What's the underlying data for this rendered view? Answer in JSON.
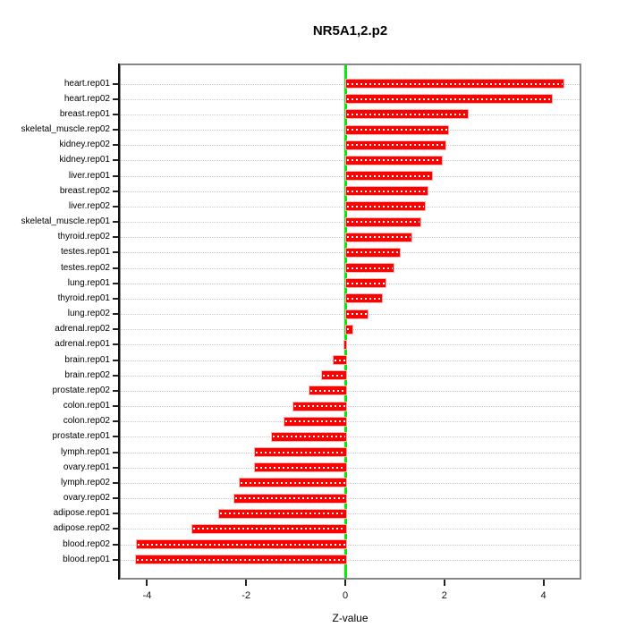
{
  "chart_data": {
    "type": "bar",
    "orientation": "horizontal",
    "title": "NR5A1,2.p2",
    "xlabel": "Z-value",
    "ylabel": "",
    "categories": [
      "heart.rep01",
      "heart.rep02",
      "breast.rep01",
      "skeletal_muscle.rep02",
      "kidney.rep02",
      "kidney.rep01",
      "liver.rep01",
      "breast.rep02",
      "liver.rep02",
      "skeletal_muscle.rep01",
      "thyroid.rep02",
      "testes.rep01",
      "testes.rep02",
      "lung.rep01",
      "thyroid.rep01",
      "lung.rep02",
      "adrenal.rep02",
      "adrenal.rep01",
      "brain.rep01",
      "brain.rep02",
      "prostate.rep02",
      "colon.rep01",
      "colon.rep02",
      "prostate.rep01",
      "lymph.rep01",
      "ovary.rep01",
      "lymph.rep02",
      "ovary.rep02",
      "adipose.rep01",
      "adipose.rep02",
      "blood.rep02",
      "blood.rep01"
    ],
    "values": [
      4.38,
      4.15,
      2.46,
      2.05,
      2.01,
      1.93,
      1.73,
      1.65,
      1.59,
      1.5,
      1.32,
      1.08,
      0.96,
      0.79,
      0.73,
      0.43,
      0.13,
      -0.03,
      -0.25,
      -0.49,
      -0.74,
      -1.07,
      -1.25,
      -1.5,
      -1.84,
      -1.85,
      -2.15,
      -2.26,
      -2.56,
      -3.1,
      -4.22,
      -4.24
    ],
    "xticks": [
      -4,
      -2,
      0,
      2,
      4
    ],
    "xlim": [
      -4.57,
      4.77
    ],
    "grid": "dotted horizontal per category",
    "legend": "none",
    "colors": {
      "bar_fill": "#ff0000",
      "bar_border": "#ffb0b0",
      "bar_center_dots": "#ffffff",
      "zero_line": "#00ee00",
      "gridline": "#c8c8c8",
      "box_border": "#888888",
      "axis_line": "#111111",
      "text": "#000000",
      "background": "#ffffff"
    }
  }
}
